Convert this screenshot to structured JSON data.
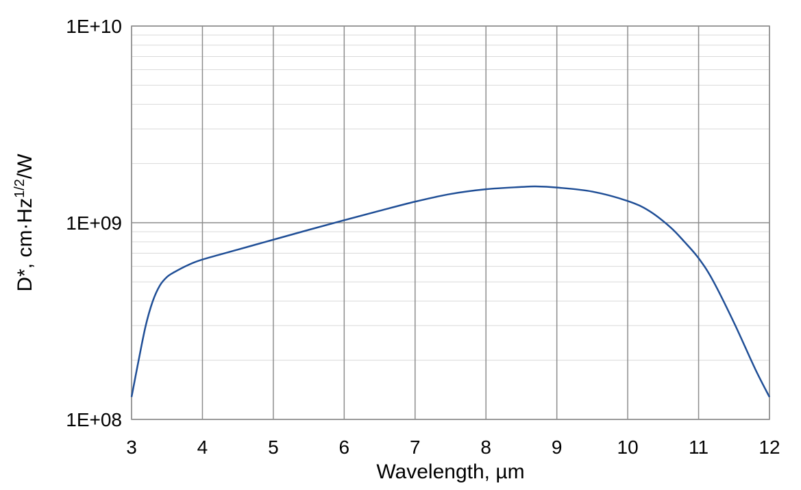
{
  "chart_data": {
    "type": "line",
    "title": "",
    "xlabel": "Wavelength, µm",
    "ylabel": {
      "prefix": "D*, cm·Hz",
      "superscript": "1/2",
      "suffix": "/W"
    },
    "x_scale": "linear",
    "y_scale": "log",
    "xlim": [
      3,
      12
    ],
    "ylim": [
      100000000,
      10000000000
    ],
    "x_ticks": [
      "3",
      "4",
      "5",
      "6",
      "7",
      "8",
      "9",
      "10",
      "11",
      "12"
    ],
    "y_ticks": [
      {
        "value": 100000000,
        "label": "1E+08"
      },
      {
        "value": 1000000000,
        "label": "1E+09"
      },
      {
        "value": 10000000000,
        "label": "1E+10"
      }
    ],
    "grid": true,
    "legend": "none",
    "series": [
      {
        "color": "#1f4e96",
        "x": [
          3.0,
          3.1,
          3.2,
          3.3,
          3.4,
          3.5,
          3.6,
          3.8,
          4.0,
          4.5,
          5.0,
          5.5,
          6.0,
          6.5,
          7.0,
          7.5,
          8.0,
          8.5,
          8.7,
          9.0,
          9.5,
          10.0,
          10.3,
          10.6,
          10.8,
          11.0,
          11.2,
          11.5,
          11.8,
          12.0
        ],
        "y": [
          130000000,
          200000000,
          300000000,
          400000000,
          480000000,
          530000000,
          560000000,
          610000000,
          650000000,
          730000000,
          820000000,
          920000000,
          1030000000,
          1150000000,
          1280000000,
          1400000000,
          1480000000,
          1520000000,
          1530000000,
          1510000000,
          1440000000,
          1290000000,
          1150000000,
          950000000,
          800000000,
          660000000,
          510000000,
          310000000,
          180000000,
          130000000
        ]
      }
    ]
  }
}
